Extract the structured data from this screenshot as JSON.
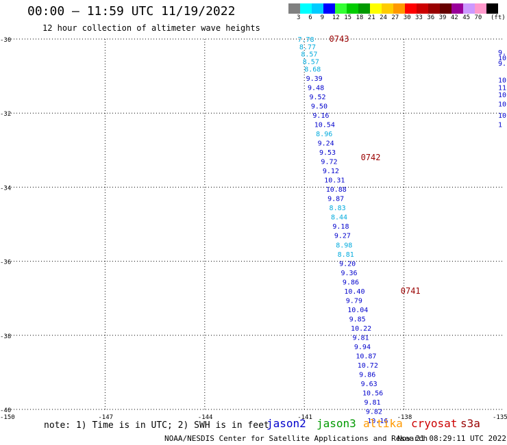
{
  "header": {
    "title": "00:00 – 11:59 UTC 11/19/2022",
    "subtitle": "12 hour collection of altimeter wave heights"
  },
  "colorbar": {
    "unit": "(ft)",
    "colors": [
      "#808080",
      "#00ffff",
      "#00ccff",
      "#0000ff",
      "#33ff33",
      "#00cc00",
      "#009900",
      "#ffff00",
      "#ffcc00",
      "#ff9900",
      "#ff0000",
      "#cc0000",
      "#990000",
      "#660000",
      "#990099",
      "#cc99ff",
      "#ff99cc",
      "#000000"
    ],
    "labels": [
      "3",
      "6",
      "9",
      "12",
      "15",
      "18",
      "21",
      "24",
      "27",
      "30",
      "33",
      "36",
      "39",
      "42",
      "45",
      "70"
    ]
  },
  "footer": {
    "note": "note: 1) Time is in UTC; 2) SWH is in feet",
    "credit": "NOAA/NESDIS Center for Satellite Applications and Research",
    "timestamp": "Nov 21 08:29:11 UTC 2022",
    "missions": [
      {
        "name": "jason2",
        "color": "#0000cc"
      },
      {
        "name": "jason3",
        "color": "#009900"
      },
      {
        "name": "altika",
        "color": "#ff9900"
      },
      {
        "name": "cryosat",
        "color": "#cc0000"
      },
      {
        "name": "s3a",
        "color": "#990000"
      }
    ]
  },
  "chart_data": {
    "type": "scatter",
    "xlim": [
      -150,
      -135
    ],
    "ylim": [
      -40,
      -30
    ],
    "x_ticks": [
      -150,
      -147,
      -144,
      -141,
      -138,
      -135
    ],
    "y_ticks": [
      -30,
      -32,
      -34,
      -36,
      -38,
      -40
    ],
    "x_tick_labels": [
      "-150",
      "-147",
      "-144",
      "-141",
      "-138",
      "-135"
    ],
    "y_tick_labels": [
      "-30",
      "-32",
      "-34",
      "-36",
      "-38",
      "-40"
    ],
    "grid": true,
    "time_labels": [
      {
        "text": "0743",
        "lon": -140.25,
        "lat": -30.0,
        "color": "#990000"
      },
      {
        "text": "0742",
        "lon": -139.3,
        "lat": -33.2,
        "color": "#990000"
      },
      {
        "text": "0741",
        "lon": -138.1,
        "lat": -36.8,
        "color": "#990000"
      }
    ],
    "series": [
      {
        "points": [
          {
            "lon": -141.2,
            "lat": -30.0,
            "value": "7.78",
            "color": "#00aadd"
          },
          {
            "lon": -141.15,
            "lat": -30.2,
            "value": "8.77",
            "color": "#00aadd"
          },
          {
            "lon": -141.1,
            "lat": -30.4,
            "value": "8.57",
            "color": "#00aadd"
          },
          {
            "lon": -141.05,
            "lat": -30.6,
            "value": "8.57",
            "color": "#00aadd"
          },
          {
            "lon": -141.0,
            "lat": -30.8,
            "value": "8.68",
            "color": "#00aadd"
          },
          {
            "lon": -140.95,
            "lat": -31.05,
            "value": "9.39",
            "color": "#0000cc"
          },
          {
            "lon": -140.9,
            "lat": -31.3,
            "value": "9.48",
            "color": "#0000cc"
          },
          {
            "lon": -140.85,
            "lat": -31.55,
            "value": "9.52",
            "color": "#0000cc"
          },
          {
            "lon": -140.8,
            "lat": -31.8,
            "value": "9.50",
            "color": "#0000cc"
          },
          {
            "lon": -140.75,
            "lat": -32.05,
            "value": "9.16",
            "color": "#0000cc"
          },
          {
            "lon": -140.7,
            "lat": -32.3,
            "value": "10.54",
            "color": "#0000cc"
          },
          {
            "lon": -140.65,
            "lat": -32.55,
            "value": "8.96",
            "color": "#00aadd"
          },
          {
            "lon": -140.6,
            "lat": -32.8,
            "value": "9.24",
            "color": "#0000cc"
          },
          {
            "lon": -140.55,
            "lat": -33.05,
            "value": "9.53",
            "color": "#0000cc"
          },
          {
            "lon": -140.5,
            "lat": -33.3,
            "value": "9.72",
            "color": "#0000cc"
          },
          {
            "lon": -140.45,
            "lat": -33.55,
            "value": "9.12",
            "color": "#0000cc"
          },
          {
            "lon": -140.4,
            "lat": -33.8,
            "value": "10.31",
            "color": "#0000cc"
          },
          {
            "lon": -140.35,
            "lat": -34.05,
            "value": "10.88",
            "color": "#0000cc"
          },
          {
            "lon": -140.3,
            "lat": -34.3,
            "value": "9.87",
            "color": "#0000cc"
          },
          {
            "lon": -140.25,
            "lat": -34.55,
            "value": "8.83",
            "color": "#00aadd"
          },
          {
            "lon": -140.2,
            "lat": -34.8,
            "value": "8.44",
            "color": "#00aadd"
          },
          {
            "lon": -140.15,
            "lat": -35.05,
            "value": "9.18",
            "color": "#0000cc"
          },
          {
            "lon": -140.1,
            "lat": -35.3,
            "value": "9.27",
            "color": "#0000cc"
          },
          {
            "lon": -140.05,
            "lat": -35.55,
            "value": "8.98",
            "color": "#00aadd"
          },
          {
            "lon": -140.0,
            "lat": -35.8,
            "value": "8.81",
            "color": "#00aadd"
          },
          {
            "lon": -139.95,
            "lat": -36.05,
            "value": "9.20",
            "color": "#0000cc"
          },
          {
            "lon": -139.9,
            "lat": -36.3,
            "value": "9.36",
            "color": "#0000cc"
          },
          {
            "lon": -139.85,
            "lat": -36.55,
            "value": "9.86",
            "color": "#0000cc"
          },
          {
            "lon": -139.8,
            "lat": -36.8,
            "value": "10.40",
            "color": "#0000cc"
          },
          {
            "lon": -139.75,
            "lat": -37.05,
            "value": "9.79",
            "color": "#0000cc"
          },
          {
            "lon": -139.7,
            "lat": -37.3,
            "value": "10.04",
            "color": "#0000cc"
          },
          {
            "lon": -139.65,
            "lat": -37.55,
            "value": "9.85",
            "color": "#0000cc"
          },
          {
            "lon": -139.6,
            "lat": -37.8,
            "value": "10.22",
            "color": "#0000cc"
          },
          {
            "lon": -139.55,
            "lat": -38.05,
            "value": "9.81",
            "color": "#0000cc"
          },
          {
            "lon": -139.5,
            "lat": -38.3,
            "value": "9.94",
            "color": "#0000cc"
          },
          {
            "lon": -139.45,
            "lat": -38.55,
            "value": "10.87",
            "color": "#0000cc"
          },
          {
            "lon": -139.4,
            "lat": -38.8,
            "value": "10.72",
            "color": "#0000cc"
          },
          {
            "lon": -139.35,
            "lat": -39.05,
            "value": "9.86",
            "color": "#0000cc"
          },
          {
            "lon": -139.3,
            "lat": -39.3,
            "value": "9.63",
            "color": "#0000cc"
          },
          {
            "lon": -139.25,
            "lat": -39.55,
            "value": "10.56",
            "color": "#0000cc"
          },
          {
            "lon": -139.2,
            "lat": -39.8,
            "value": "9.81",
            "color": "#0000cc"
          },
          {
            "lon": -139.15,
            "lat": -40.05,
            "value": "9.82",
            "color": "#0000cc"
          },
          {
            "lon": -139.1,
            "lat": -40.3,
            "value": "10.16",
            "color": "#0000cc"
          }
        ]
      }
    ],
    "edge_labels": [
      {
        "lon": -135.0,
        "lat": -30.35,
        "value": "9.",
        "color": "#0000cc"
      },
      {
        "lon": -135.0,
        "lat": -30.5,
        "value": "10",
        "color": "#0000cc"
      },
      {
        "lon": -135.0,
        "lat": -30.65,
        "value": "9.",
        "color": "#0000cc"
      },
      {
        "lon": -135.0,
        "lat": -31.1,
        "value": "10",
        "color": "#0000cc"
      },
      {
        "lon": -135.0,
        "lat": -31.3,
        "value": "11",
        "color": "#0000cc"
      },
      {
        "lon": -135.0,
        "lat": -31.5,
        "value": "10",
        "color": "#0000cc"
      },
      {
        "lon": -135.0,
        "lat": -31.75,
        "value": "10",
        "color": "#0000cc"
      },
      {
        "lon": -135.0,
        "lat": -32.05,
        "value": "10",
        "color": "#0000cc"
      },
      {
        "lon": -135.0,
        "lat": -32.3,
        "value": "1",
        "color": "#0000cc"
      }
    ]
  }
}
